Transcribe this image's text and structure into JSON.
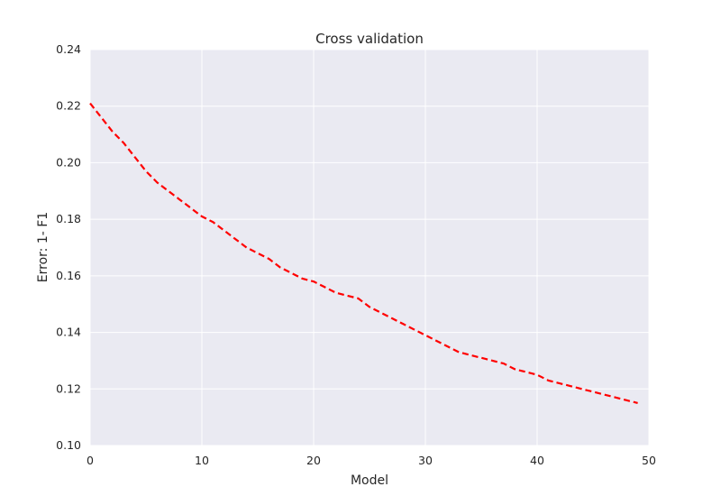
{
  "chart_data": {
    "type": "line",
    "title": "Cross validation",
    "xlabel": "Model",
    "ylabel": "Error: 1- F1",
    "xlim": [
      0,
      50
    ],
    "ylim": [
      0.1,
      0.24
    ],
    "xticks": [
      0,
      10,
      20,
      30,
      40,
      50
    ],
    "xtick_labels": [
      "0",
      "10",
      "20",
      "30",
      "40",
      "50"
    ],
    "yticks": [
      0.1,
      0.12,
      0.14,
      0.16,
      0.18,
      0.2,
      0.22,
      0.24
    ],
    "ytick_labels": [
      "0.10",
      "0.12",
      "0.14",
      "0.16",
      "0.18",
      "0.20",
      "0.22",
      "0.24"
    ],
    "grid": true,
    "background": "#eaeaf2",
    "grid_color": "#ffffff",
    "series": [
      {
        "color": "#ff0000",
        "line_style": "dashed",
        "x": [
          0,
          1,
          2,
          3,
          4,
          5,
          6,
          7,
          8,
          9,
          10,
          11,
          12,
          13,
          14,
          15,
          16,
          17,
          18,
          19,
          20,
          21,
          22,
          23,
          24,
          25,
          26,
          27,
          28,
          29,
          30,
          31,
          32,
          33,
          34,
          35,
          36,
          37,
          38,
          39,
          40,
          41,
          42,
          43,
          44,
          45,
          46,
          47,
          48,
          49
        ],
        "y": [
          0.221,
          0.216,
          0.211,
          0.207,
          0.202,
          0.197,
          0.193,
          0.19,
          0.187,
          0.184,
          0.181,
          0.179,
          0.176,
          0.173,
          0.17,
          0.168,
          0.166,
          0.163,
          0.161,
          0.159,
          0.158,
          0.156,
          0.154,
          0.153,
          0.152,
          0.149,
          0.147,
          0.145,
          0.143,
          0.141,
          0.139,
          0.137,
          0.135,
          0.133,
          0.132,
          0.131,
          0.13,
          0.129,
          0.127,
          0.126,
          0.125,
          0.123,
          0.122,
          0.121,
          0.12,
          0.119,
          0.118,
          0.117,
          0.116,
          0.115
        ]
      }
    ]
  }
}
